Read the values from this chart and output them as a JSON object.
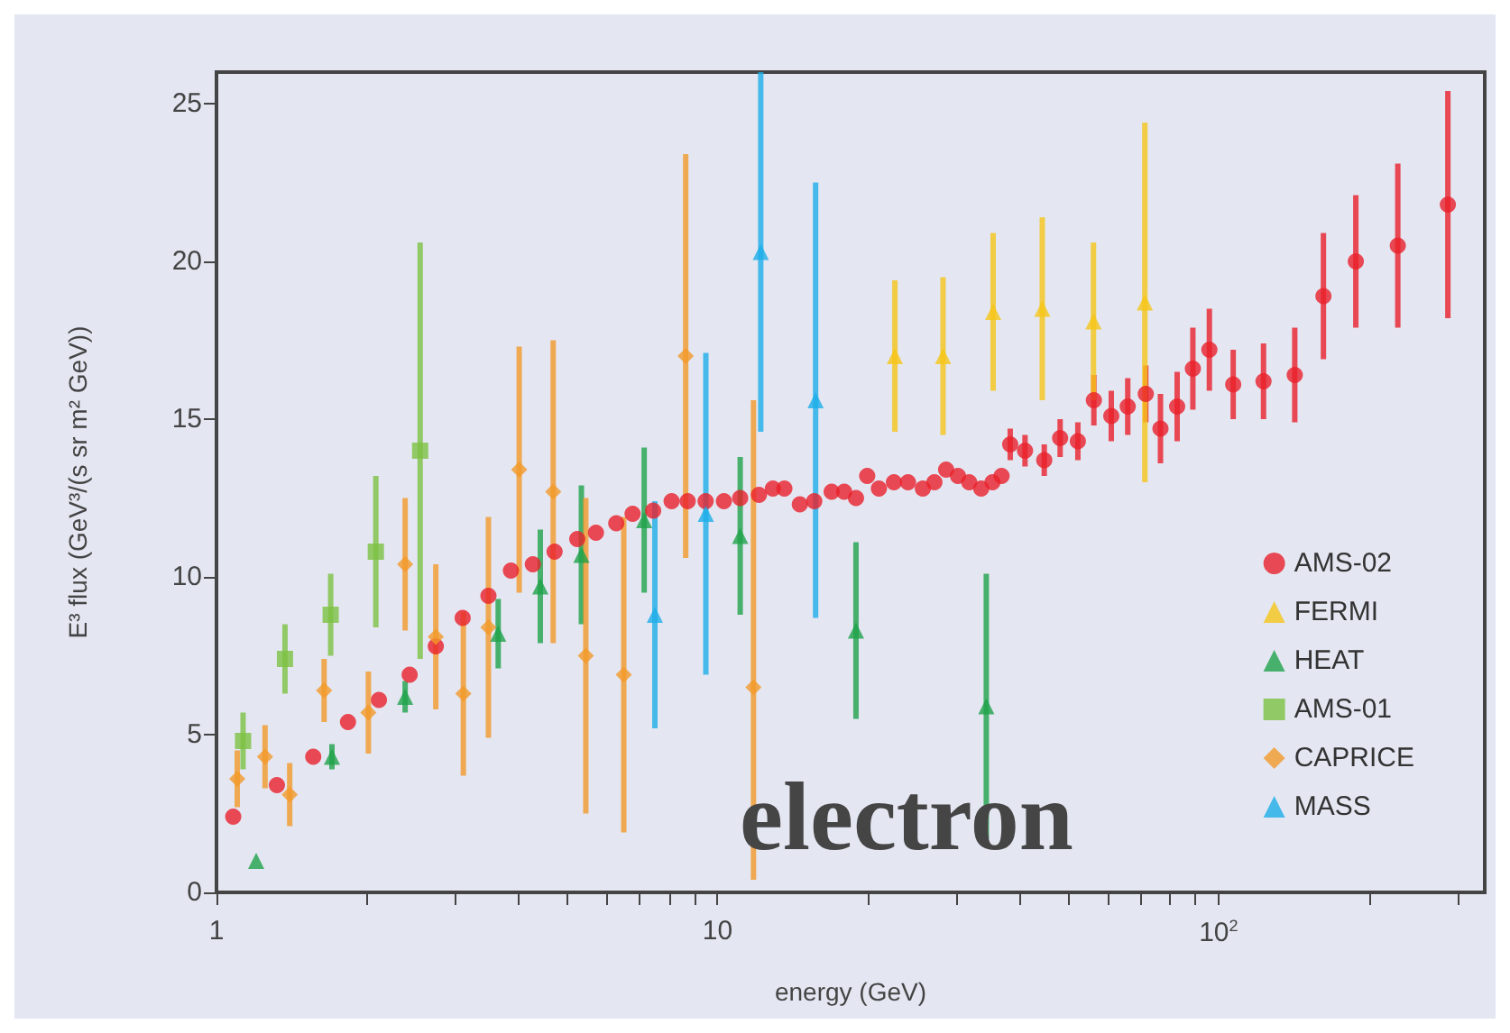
{
  "chart_data": {
    "type": "scatter",
    "xlabel": "energy (GeV)",
    "ylabel": "E³ flux (GeV³/(s sr m² GeV))",
    "log": "x",
    "grid": false,
    "legend": "bottom right",
    "xlim": [
      1,
      340
    ],
    "ylim": [
      0,
      26
    ],
    "xticks": [
      1,
      {
        "value": 2,
        "label": null
      },
      {
        "value": 3,
        "label": null
      },
      {
        "value": 4,
        "label": null
      },
      {
        "value": 5,
        "label": null
      },
      {
        "value": 6,
        "label": null
      },
      {
        "value": 7,
        "label": null
      },
      {
        "value": 8,
        "label": null
      },
      {
        "value": 9,
        "label": null
      },
      10,
      {
        "value": 20,
        "label": null
      },
      {
        "value": 30,
        "label": null
      },
      {
        "value": 40,
        "label": null
      },
      {
        "value": 50,
        "label": null
      },
      {
        "value": 60,
        "label": null
      },
      {
        "value": 70,
        "label": null
      },
      {
        "value": 80,
        "label": null
      },
      {
        "value": 90,
        "label": null
      },
      {
        "value": 100,
        "label": "10$^{2}$"
      },
      {
        "value": 200,
        "label": null
      },
      {
        "value": 300,
        "label": null
      }
    ],
    "yticks": [
      0,
      5,
      10,
      15,
      20,
      25
    ],
    "annotations": [
      "electron"
    ],
    "series": [
      {
        "name": "AMS-02",
        "color": "#e8202a",
        "marker": "circle",
        "x": [
          1.08,
          1.32,
          1.56,
          1.83,
          2.11,
          2.43,
          2.74,
          3.1,
          3.49,
          3.87,
          4.28,
          4.73,
          5.25,
          5.72,
          6.28,
          6.77,
          7.44,
          8.1,
          8.72,
          9.47,
          10.3,
          11.1,
          12.1,
          12.9,
          13.6,
          14.6,
          15.6,
          16.9,
          17.9,
          18.9,
          19.9,
          21,
          22.5,
          24,
          25.7,
          27.1,
          28.6,
          30.2,
          31.8,
          33.6,
          35.4,
          36.9,
          38.4,
          41.1,
          44.9,
          48.3,
          52.4,
          56.4,
          61.1,
          65.9,
          71.6,
          76.6,
          82.7,
          88.9,
          95.9,
          107,
          123,
          142,
          162,
          188,
          228,
          287
        ],
        "values": [
          2.4,
          3.4,
          4.3,
          5.4,
          6.1,
          6.9,
          7.8,
          8.7,
          9.4,
          10.2,
          10.4,
          10.8,
          11.2,
          11.4,
          11.7,
          12,
          12.1,
          12.4,
          12.4,
          12.4,
          12.4,
          12.5,
          12.6,
          12.8,
          12.8,
          12.3,
          12.4,
          12.7,
          12.7,
          12.5,
          13.2,
          12.8,
          13,
          13,
          12.8,
          13,
          13.4,
          13.2,
          13,
          12.8,
          13,
          13.2,
          14.2,
          14,
          13.7,
          14.4,
          14.3,
          15.6,
          15.1,
          15.4,
          15.8,
          14.7,
          15.4,
          16.6,
          17.2,
          16.1,
          16.2,
          16.4,
          18.9,
          20,
          20.5,
          21.8
        ],
        "errors": [
          null,
          null,
          null,
          null,
          null,
          null,
          null,
          null,
          null,
          null,
          null,
          null,
          null,
          null,
          null,
          null,
          null,
          null,
          null,
          null,
          null,
          null,
          null,
          null,
          null,
          null,
          null,
          null,
          null,
          null,
          null,
          null,
          null,
          null,
          null,
          null,
          null,
          null,
          null,
          null,
          null,
          null,
          0.5,
          0.5,
          0.5,
          0.6,
          0.6,
          0.8,
          0.8,
          0.9,
          0.9,
          1.1,
          1.1,
          1.3,
          1.3,
          1.1,
          1.2,
          1.5,
          2,
          2.1,
          2.6,
          3.6
        ]
      },
      {
        "name": "FERMI",
        "color": "#f5c518",
        "marker": "triangle",
        "x": [
          22.6,
          28.2,
          35.5,
          44.5,
          56.3,
          71.3
        ],
        "values": [
          17,
          17,
          18.4,
          18.5,
          18.1,
          18.7
        ],
        "errors": [
          2.4,
          2.5,
          2.5,
          2.9,
          2.5,
          5.7
        ]
      },
      {
        "name": "HEAT",
        "color": "#1fa34a",
        "marker": "triangle",
        "x": [
          1.2,
          1.7,
          2.38,
          3.65,
          4.43,
          5.35,
          7.14,
          11.1,
          18.9,
          34.4
        ],
        "values": [
          1,
          4.3,
          6.2,
          8.2,
          9.7,
          10.7,
          11.8,
          11.3,
          8.3,
          5.9
        ],
        "errors": [
          null,
          0.4,
          0.5,
          1.1,
          1.8,
          2.2,
          2.3,
          2.5,
          2.8,
          4.2
        ]
      },
      {
        "name": "AMS-01",
        "color": "#7dc243",
        "marker": "square",
        "x": [
          1.13,
          1.37,
          1.69,
          2.08,
          2.55
        ],
        "values": [
          4.8,
          7.4,
          8.8,
          10.8,
          14
        ],
        "errors": [
          0.9,
          1.1,
          1.3,
          2.4,
          6.6
        ]
      },
      {
        "name": "CAPRICE",
        "color": "#f39a2a",
        "marker": "diamond",
        "x": [
          1.1,
          1.25,
          1.4,
          1.64,
          2.01,
          2.38,
          2.74,
          3.11,
          3.49,
          4.02,
          4.7,
          5.46,
          6.5,
          8.64,
          11.8
        ],
        "values": [
          3.6,
          4.3,
          3.1,
          6.4,
          5.7,
          10.4,
          8.1,
          6.3,
          8.4,
          13.4,
          12.7,
          7.5,
          6.9,
          17,
          6.5
        ],
        "errors": [
          0.9,
          1,
          1,
          1,
          1.3,
          2.1,
          2.3,
          2.6,
          3.5,
          3.9,
          4.8,
          5,
          5,
          6.4,
          [
            0.4,
            15.6
          ]
        ]
      },
      {
        "name": "MASS",
        "color": "#1eaee8",
        "marker": "triangle",
        "x": [
          7.5,
          9.48,
          12.2,
          15.7
        ],
        "values": [
          8.8,
          12,
          20.3,
          15.6
        ],
        "errors": [
          3.6,
          5.1,
          [
            14.6,
            26
          ],
          6.9
        ]
      }
    ]
  }
}
